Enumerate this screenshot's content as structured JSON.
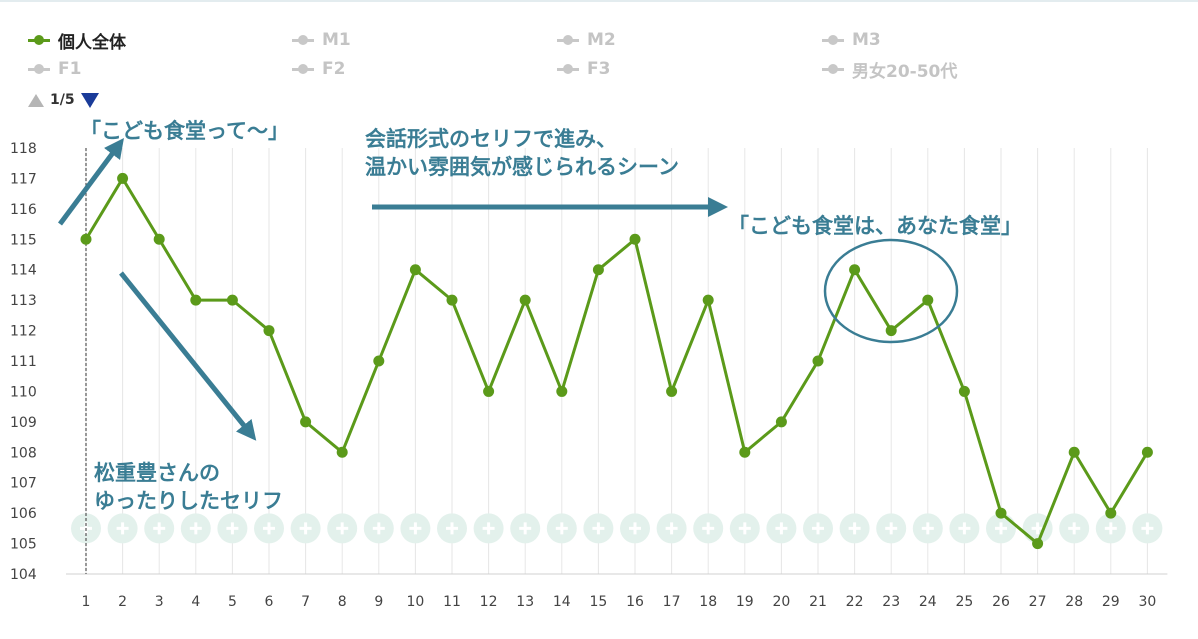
{
  "legend": [
    {
      "label": "個人全体",
      "active": true
    },
    {
      "label": "M1",
      "active": false
    },
    {
      "label": "M2",
      "active": false
    },
    {
      "label": "M3",
      "active": false
    },
    {
      "label": "F1",
      "active": false
    },
    {
      "label": "F2",
      "active": false
    },
    {
      "label": "F3",
      "active": false
    },
    {
      "label": "男女20-50代",
      "active": false
    }
  ],
  "pager": {
    "label": "1/5"
  },
  "annotations": {
    "note1": "「こども食堂って〜」",
    "note2_line1": "会話形式のセリフで進み、",
    "note2_line2": "温かい雰囲気が感じられるシーン",
    "note3": "「こども食堂は、あなた食堂」",
    "note4_line1": "松重豊さんの",
    "note4_line2": "ゆったりしたセリフ"
  },
  "colors": {
    "line": "#5b9a1a",
    "annotation": "#3a7d94",
    "grid": "#e6e6e6",
    "marker_band": "#e3f1ec",
    "pager_active": "#1a3b99"
  },
  "icons": {
    "marker_band": "plus-circle-icon"
  },
  "chart_data": {
    "type": "line",
    "x": [
      1,
      2,
      3,
      4,
      5,
      6,
      7,
      8,
      9,
      10,
      11,
      12,
      13,
      14,
      15,
      16,
      17,
      18,
      19,
      20,
      21,
      22,
      23,
      24,
      25,
      26,
      27,
      28,
      29,
      30
    ],
    "series": [
      {
        "name": "個人全体",
        "values": [
          115,
          117,
          115,
          113,
          113,
          112,
          109,
          108,
          111,
          114,
          113,
          110,
          113,
          110,
          114,
          115,
          110,
          113,
          108,
          109,
          111,
          114,
          112,
          113,
          110,
          106,
          105,
          108,
          106,
          108
        ]
      }
    ],
    "ylim": [
      104,
      118
    ],
    "yticks": [
      104,
      105,
      106,
      107,
      108,
      109,
      110,
      111,
      112,
      113,
      114,
      115,
      116,
      117,
      118
    ],
    "grid": "vertical",
    "current_position_marker": 1,
    "highlight": {
      "points": [
        22,
        23,
        24
      ],
      "shape": "ellipse"
    },
    "xlabel": "",
    "ylabel": ""
  }
}
